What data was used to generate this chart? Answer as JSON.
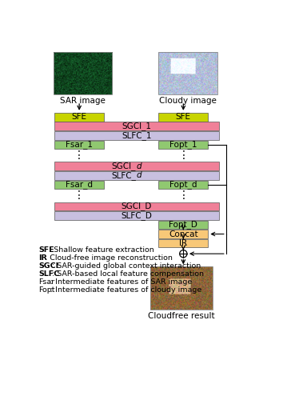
{
  "colors": {
    "yellow_green": "#c8d400",
    "pink": "#f08098",
    "lavender": "#c8c0e0",
    "green": "#90c870",
    "orange": "#f8c878",
    "white": "#ffffff",
    "black": "#000000"
  },
  "legend_items": [
    {
      "bold": true,
      "label": "SFE",
      "desc": ": Shallow feature extraction"
    },
    {
      "bold": true,
      "label": "IR",
      "desc": ": Cloud-free image reconstruction"
    },
    {
      "bold": true,
      "label": "SGCI",
      "desc": ": SAR-guided global context interaction"
    },
    {
      "bold": true,
      "label": "SLFC",
      "desc": ": SAR-based local feature compensation"
    },
    {
      "bold": false,
      "label": "Fsar",
      "desc": ": Intermediate features of SAR image"
    },
    {
      "bold": false,
      "label": "Fopt",
      "desc": ": Intermediate features of cloudy image"
    }
  ]
}
